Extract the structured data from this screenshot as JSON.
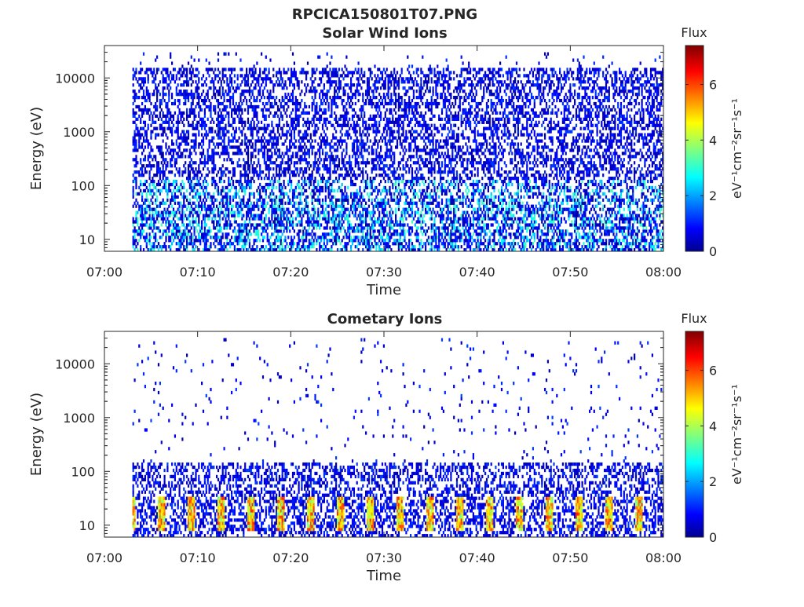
{
  "figure": {
    "title_line1": "RPCICA150801T07.PNG"
  },
  "chart_data": [
    {
      "type": "heatmap",
      "title": "Solar Wind Ions",
      "xlabel": "Time",
      "ylabel": "Energy (eV)",
      "x_range": [
        "07:00",
        "08:00"
      ],
      "x_ticks": [
        "07:00",
        "07:10",
        "07:20",
        "07:30",
        "07:40",
        "07:50",
        "08:00"
      ],
      "y_scale": "log",
      "y_range": [
        6,
        40000
      ],
      "y_ticks": [
        10,
        100,
        1000,
        10000
      ],
      "y_tick_labels": [
        "10",
        "100",
        "1000",
        "10000"
      ],
      "colorbar": {
        "label": "Flux",
        "units": "eV⁻¹cm⁻²sr⁻¹s⁻¹",
        "range": [
          0,
          7.4
        ],
        "ticks": [
          0,
          2,
          4,
          6
        ],
        "colormap": "jet"
      },
      "data_start": "07:03",
      "data_end": "08:00",
      "grid": false
    },
    {
      "type": "heatmap",
      "title": "Cometary Ions",
      "xlabel": "Time",
      "ylabel": "Energy (eV)",
      "x_range": [
        "07:00",
        "08:00"
      ],
      "x_ticks": [
        "07:00",
        "07:10",
        "07:20",
        "07:30",
        "07:40",
        "07:50",
        "08:00"
      ],
      "y_scale": "log",
      "y_range": [
        6,
        40000
      ],
      "y_ticks": [
        10,
        100,
        1000,
        10000
      ],
      "y_tick_labels": [
        "10",
        "100",
        "1000",
        "10000"
      ],
      "colorbar": {
        "label": "Flux",
        "units": "eV⁻¹cm⁻²sr⁻¹s⁻¹",
        "range": [
          0,
          7.4
        ],
        "ticks": [
          0,
          2,
          4,
          6
        ],
        "colormap": "jet"
      },
      "data_start": "07:03",
      "data_end": "08:00",
      "grid": false
    }
  ]
}
